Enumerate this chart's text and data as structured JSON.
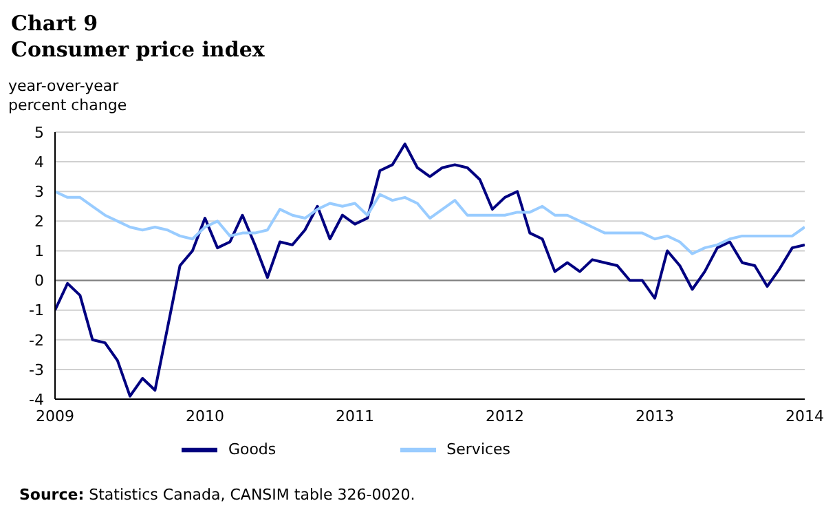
{
  "chart_data": {
    "type": "line",
    "title": "Chart 9",
    "subtitle": "Consumer price index",
    "ylabel": "year-over-year percent change",
    "annotations": [
      "Source: Statistics Canada, CANSIM table 326-0020."
    ],
    "x": [
      "2009-01",
      "2009-02",
      "2009-03",
      "2009-04",
      "2009-05",
      "2009-06",
      "2009-07",
      "2009-08",
      "2009-09",
      "2009-10",
      "2009-11",
      "2009-12",
      "2010-01",
      "2010-02",
      "2010-03",
      "2010-04",
      "2010-05",
      "2010-06",
      "2010-07",
      "2010-08",
      "2010-09",
      "2010-10",
      "2010-11",
      "2010-12",
      "2011-01",
      "2011-02",
      "2011-03",
      "2011-04",
      "2011-05",
      "2011-06",
      "2011-07",
      "2011-08",
      "2011-09",
      "2011-10",
      "2011-11",
      "2011-12",
      "2012-01",
      "2012-02",
      "2012-03",
      "2012-04",
      "2012-05",
      "2012-06",
      "2012-07",
      "2012-08",
      "2012-09",
      "2012-10",
      "2012-11",
      "2012-12",
      "2013-01",
      "2013-02",
      "2013-03",
      "2013-04",
      "2013-05",
      "2013-06",
      "2013-07",
      "2013-08",
      "2013-09",
      "2013-10",
      "2013-11",
      "2013-12",
      "2014-01"
    ],
    "series": [
      {
        "name": "Goods",
        "color": "#000080",
        "values": [
          -1.0,
          -0.1,
          -0.5,
          -2.0,
          -2.1,
          -2.7,
          -3.9,
          -3.3,
          -3.7,
          -1.6,
          0.5,
          1.0,
          2.1,
          1.1,
          1.3,
          2.2,
          1.2,
          0.1,
          1.3,
          1.2,
          1.7,
          2.5,
          1.4,
          2.2,
          1.9,
          2.1,
          3.7,
          3.9,
          4.6,
          3.8,
          3.5,
          3.8,
          3.9,
          3.8,
          3.4,
          2.4,
          2.8,
          3.0,
          1.6,
          1.4,
          0.3,
          0.6,
          0.3,
          0.7,
          0.6,
          0.5,
          0.0,
          0.0,
          -0.6,
          1.0,
          0.5,
          -0.3,
          0.3,
          1.1,
          1.3,
          0.6,
          0.5,
          -0.2,
          0.4,
          1.1,
          1.2
        ]
      },
      {
        "name": "Services",
        "color": "#99ccff",
        "values": [
          3.0,
          2.8,
          2.8,
          2.5,
          2.2,
          2.0,
          1.8,
          1.7,
          1.8,
          1.7,
          1.5,
          1.4,
          1.8,
          2.0,
          1.5,
          1.6,
          1.6,
          1.7,
          2.4,
          2.2,
          2.1,
          2.4,
          2.6,
          2.5,
          2.6,
          2.2,
          2.9,
          2.7,
          2.8,
          2.6,
          2.1,
          2.4,
          2.7,
          2.2,
          2.2,
          2.2,
          2.2,
          2.3,
          2.3,
          2.5,
          2.2,
          2.2,
          2.0,
          1.8,
          1.6,
          1.6,
          1.6,
          1.6,
          1.4,
          1.5,
          1.3,
          0.9,
          1.1,
          1.2,
          1.4,
          1.5,
          1.5,
          1.5,
          1.5,
          1.5,
          1.8
        ]
      }
    ],
    "xlim": [
      "2009-01",
      "2014-01"
    ],
    "xticks": [
      {
        "value": "2009-01",
        "label": "2009"
      },
      {
        "value": "2010-01",
        "label": "2010"
      },
      {
        "value": "2011-01",
        "label": "2011"
      },
      {
        "value": "2012-01",
        "label": "2012"
      },
      {
        "value": "2013-01",
        "label": "2013"
      },
      {
        "value": "2014-01",
        "label": "2014"
      }
    ],
    "ylim": [
      -4,
      5
    ],
    "yticks": [
      -4,
      -3,
      -2,
      -1,
      0,
      1,
      2,
      3,
      4,
      5
    ],
    "ref_lines": [
      {
        "axis": "y",
        "value": 0,
        "color": "#808080"
      }
    ],
    "grid": "y",
    "legend": "bottom",
    "marker": "none",
    "line_style": "solid"
  }
}
